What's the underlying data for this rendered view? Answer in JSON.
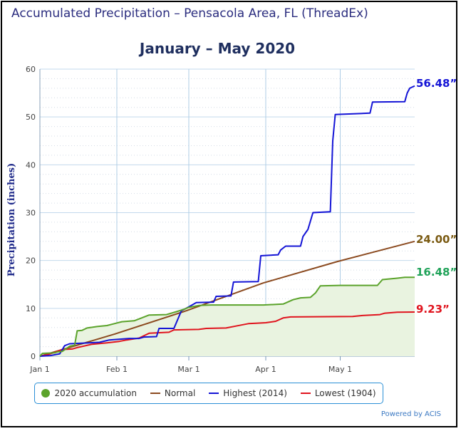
{
  "chart_title": "Accumulated Precipitation – Pensacola Area, FL (ThreadEx)",
  "credit": "Powered by ACIS",
  "chart_data": {
    "type": "line",
    "title": "Accumulated Precipitation – Pensacola Area, FL (ThreadEx)",
    "subtitle": "January – May 2020",
    "xlabel": "",
    "ylabel": "Precipitation (inches)",
    "x_tick_labels": [
      "Jan 1",
      "Feb 1",
      "Mar 1",
      "Apr 1",
      "May 1"
    ],
    "x_ticks": [
      "2020-01-01",
      "2020-02-01",
      "2020-03-01",
      "2020-04-01",
      "2020-05-01"
    ],
    "xlim": [
      "2020-01-01",
      "2020-05-31"
    ],
    "y_ticks": [
      0,
      10,
      20,
      30,
      40,
      50,
      60
    ],
    "ylim": [
      0,
      60
    ],
    "grid": true,
    "legend_position": "bottom",
    "colors": {
      "accum2020": "#5ba32b",
      "fill2020": "#e9f3e0",
      "normal": "#8b4a1f",
      "highest": "#1414d6",
      "lowest": "#e0141e"
    },
    "series": [
      {
        "key": "accum2020",
        "name": "2020 accumulation",
        "end_label": "16.48”",
        "label_color": "#21a35a",
        "points": [
          [
            "2020-01-01",
            0
          ],
          [
            "2020-01-02",
            0.6
          ],
          [
            "2020-01-07",
            0.7
          ],
          [
            "2020-01-08",
            0.9
          ],
          [
            "2020-01-10",
            1.0
          ],
          [
            "2020-01-13",
            2.1
          ],
          [
            "2020-01-15",
            2.3
          ],
          [
            "2020-01-16",
            5.3
          ],
          [
            "2020-01-18",
            5.4
          ],
          [
            "2020-01-20",
            5.9
          ],
          [
            "2020-01-24",
            6.2
          ],
          [
            "2020-01-28",
            6.4
          ],
          [
            "2020-01-31",
            6.8
          ],
          [
            "2020-02-03",
            7.2
          ],
          [
            "2020-02-08",
            7.4
          ],
          [
            "2020-02-14",
            8.6
          ],
          [
            "2020-02-21",
            8.7
          ],
          [
            "2020-02-25",
            9.3
          ],
          [
            "2020-02-28",
            9.8
          ],
          [
            "2020-03-01",
            10.2
          ],
          [
            "2020-03-05",
            10.6
          ],
          [
            "2020-03-10",
            10.7
          ],
          [
            "2020-03-31",
            10.7
          ],
          [
            "2020-04-08",
            10.9
          ],
          [
            "2020-04-12",
            11.8
          ],
          [
            "2020-04-15",
            12.2
          ],
          [
            "2020-04-19",
            12.3
          ],
          [
            "2020-04-21",
            13.2
          ],
          [
            "2020-04-23",
            14.7
          ],
          [
            "2020-05-01",
            14.8
          ],
          [
            "2020-05-16",
            14.8
          ],
          [
            "2020-05-18",
            16.0
          ],
          [
            "2020-05-24",
            16.3
          ],
          [
            "2020-05-27",
            16.48
          ],
          [
            "2020-05-31",
            16.48
          ]
        ]
      },
      {
        "key": "normal",
        "name": "Normal",
        "end_label": "24.00”",
        "label_color": "#7a5a12",
        "points": [
          [
            "2020-01-01",
            0
          ],
          [
            "2020-01-31",
            4.6
          ],
          [
            "2020-02-29",
            9.5
          ],
          [
            "2020-03-31",
            15.3
          ],
          [
            "2020-04-30",
            19.8
          ],
          [
            "2020-05-31",
            24.0
          ]
        ]
      },
      {
        "key": "highest",
        "name": "Highest (2014)",
        "end_label": "56.48”",
        "label_color": "#1414d6",
        "points": [
          [
            "2020-01-01",
            0
          ],
          [
            "2020-01-05",
            0.1
          ],
          [
            "2020-01-09",
            0.5
          ],
          [
            "2020-01-11",
            2.2
          ],
          [
            "2020-01-13",
            2.6
          ],
          [
            "2020-01-21",
            2.8
          ],
          [
            "2020-01-25",
            2.9
          ],
          [
            "2020-01-29",
            3.4
          ],
          [
            "2020-02-06",
            3.7
          ],
          [
            "2020-02-10",
            3.7
          ],
          [
            "2020-02-12",
            4.0
          ],
          [
            "2020-02-17",
            4.1
          ],
          [
            "2020-02-18",
            5.8
          ],
          [
            "2020-02-24",
            5.8
          ],
          [
            "2020-02-27",
            9.5
          ],
          [
            "2020-03-01",
            10.3
          ],
          [
            "2020-03-04",
            11.2
          ],
          [
            "2020-03-11",
            11.3
          ],
          [
            "2020-03-12",
            12.5
          ],
          [
            "2020-03-18",
            12.6
          ],
          [
            "2020-03-19",
            15.5
          ],
          [
            "2020-03-29",
            15.6
          ],
          [
            "2020-03-30",
            21.0
          ],
          [
            "2020-04-06",
            21.2
          ],
          [
            "2020-04-07",
            22.2
          ],
          [
            "2020-04-09",
            23.0
          ],
          [
            "2020-04-15",
            23.0
          ],
          [
            "2020-04-16",
            25.0
          ],
          [
            "2020-04-18",
            26.5
          ],
          [
            "2020-04-20",
            30.0
          ],
          [
            "2020-04-27",
            30.2
          ],
          [
            "2020-04-28",
            45.0
          ],
          [
            "2020-04-29",
            50.5
          ],
          [
            "2020-05-13",
            50.8
          ],
          [
            "2020-05-14",
            53.1
          ],
          [
            "2020-05-27",
            53.2
          ],
          [
            "2020-05-28",
            55.0
          ],
          [
            "2020-05-29",
            56.0
          ],
          [
            "2020-05-31",
            56.48
          ]
        ]
      },
      {
        "key": "lowest",
        "name": "Lowest (1904)",
        "end_label": "9.23”",
        "label_color": "#e0141e",
        "points": [
          [
            "2020-01-01",
            0
          ],
          [
            "2020-01-04",
            0.3
          ],
          [
            "2020-01-07",
            0.8
          ],
          [
            "2020-01-10",
            1.4
          ],
          [
            "2020-01-14",
            1.5
          ],
          [
            "2020-01-16",
            1.8
          ],
          [
            "2020-01-22",
            2.5
          ],
          [
            "2020-01-28",
            2.8
          ],
          [
            "2020-02-02",
            3.1
          ],
          [
            "2020-02-05",
            3.4
          ],
          [
            "2020-02-10",
            3.8
          ],
          [
            "2020-02-14",
            4.8
          ],
          [
            "2020-02-22",
            5.0
          ],
          [
            "2020-02-24",
            5.5
          ],
          [
            "2020-03-05",
            5.6
          ],
          [
            "2020-03-08",
            5.8
          ],
          [
            "2020-03-16",
            5.9
          ],
          [
            "2020-03-20",
            6.3
          ],
          [
            "2020-03-25",
            6.8
          ],
          [
            "2020-03-28",
            6.9
          ],
          [
            "2020-04-01",
            7.0
          ],
          [
            "2020-04-05",
            7.3
          ],
          [
            "2020-04-08",
            8.0
          ],
          [
            "2020-04-11",
            8.2
          ],
          [
            "2020-05-06",
            8.3
          ],
          [
            "2020-05-10",
            8.5
          ],
          [
            "2020-05-17",
            8.7
          ],
          [
            "2020-05-19",
            9.0
          ],
          [
            "2020-05-24",
            9.2
          ],
          [
            "2020-05-31",
            9.23
          ]
        ]
      }
    ]
  }
}
